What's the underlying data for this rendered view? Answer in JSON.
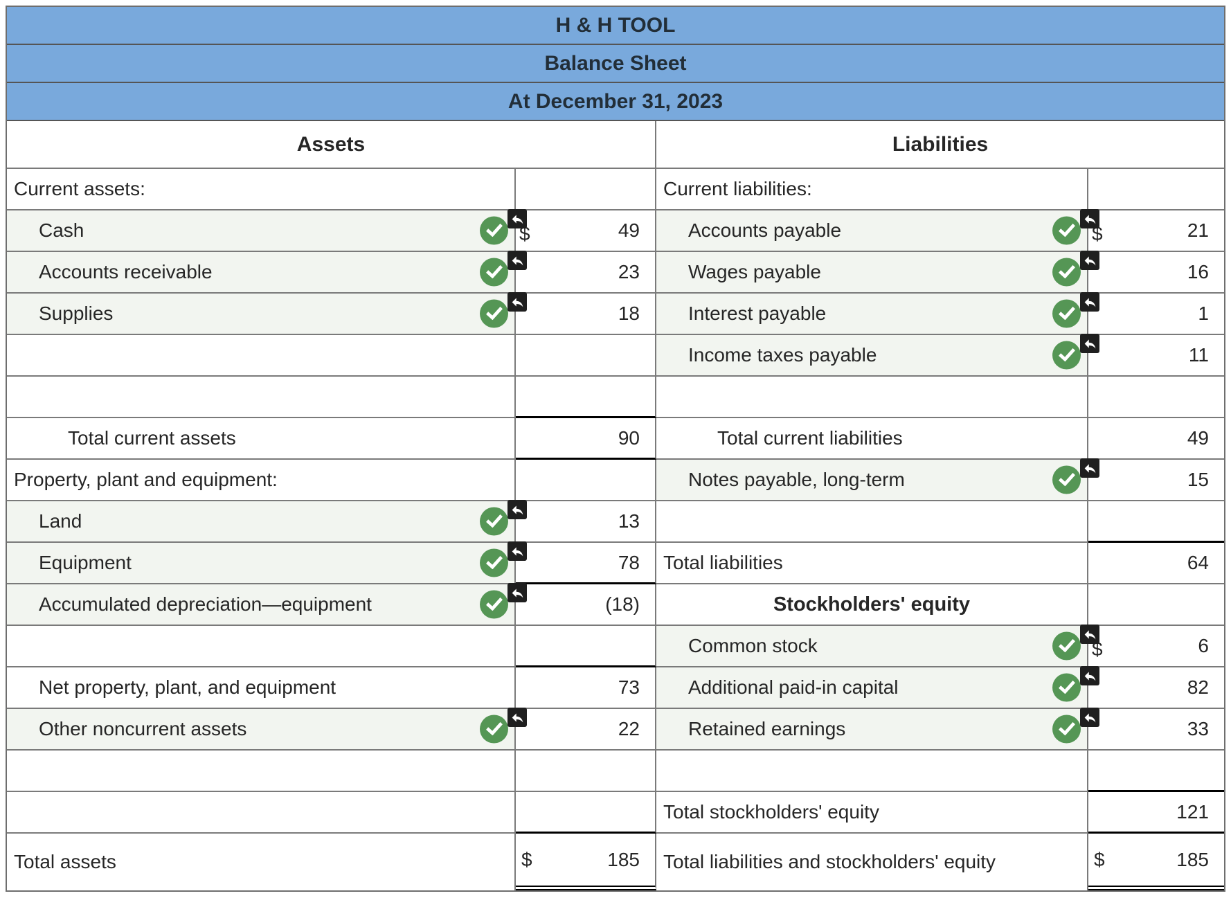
{
  "title": {
    "company": "H & H TOOL",
    "statement": "Balance Sheet",
    "date": "At December 31, 2023"
  },
  "column_headers": {
    "left": "Assets",
    "right": "Liabilities"
  },
  "colors": {
    "header_blue": "#79a9dc",
    "check_green": "#559655",
    "entry_row_bg": "#f2f5f0",
    "grid_border": "#7a7a7a",
    "thick_rule": "#000000",
    "undo_icon_bg": "#1f1f1f"
  },
  "icons": {
    "check": "check-circle-icon",
    "undo": "undo-arrow-icon"
  },
  "rows": [
    {
      "left": {
        "label": "Current assets:"
      },
      "right": {
        "label": "Current liabilities:"
      }
    },
    {
      "left": {
        "label": "Cash",
        "dollar": "$",
        "value": "49"
      },
      "right": {
        "label": "Accounts payable",
        "dollar": "$",
        "value": "21"
      }
    },
    {
      "left": {
        "label": "Accounts receivable",
        "value": "23"
      },
      "right": {
        "label": "Wages payable",
        "value": "16"
      }
    },
    {
      "left": {
        "label": "Supplies",
        "value": "18"
      },
      "right": {
        "label": "Interest payable",
        "value": "1"
      }
    },
    {
      "left": {},
      "right": {
        "label": "Income taxes payable",
        "value": "11"
      }
    },
    {
      "left": {},
      "right": {}
    },
    {
      "left": {
        "label": "Total current assets",
        "value": "90"
      },
      "right": {
        "label": "Total current liabilities",
        "value": "49"
      }
    },
    {
      "left": {
        "label": "Property, plant and equipment:"
      },
      "right": {
        "label": "Notes payable, long-term",
        "value": "15"
      }
    },
    {
      "left": {
        "label": "Land",
        "value": "13"
      },
      "right": {}
    },
    {
      "left": {
        "label": "Equipment",
        "value": "78"
      },
      "right": {
        "label": "Total liabilities",
        "value": "64"
      }
    },
    {
      "left": {
        "label": "Accumulated depreciation—equipment",
        "value": "(18)"
      },
      "right": {
        "label": "Stockholders' equity"
      }
    },
    {
      "left": {},
      "right": {
        "label": "Common stock",
        "dollar": "$",
        "value": "6"
      }
    },
    {
      "left": {
        "label": "Net property, plant, and equipment",
        "value": "73"
      },
      "right": {
        "label": "Additional paid-in capital",
        "value": "82"
      }
    },
    {
      "left": {
        "label": "Other noncurrent assets",
        "value": "22"
      },
      "right": {
        "label": "Retained earnings",
        "value": "33"
      }
    },
    {
      "left": {},
      "right": {}
    },
    {
      "left": {},
      "right": {
        "label": "Total stockholders' equity",
        "value": "121"
      }
    },
    {
      "left": {
        "label": "Total assets",
        "dollar": "$",
        "value": "185"
      },
      "right": {
        "label": "Total liabilities and stockholders' equity",
        "dollar": "$",
        "value": "185"
      }
    }
  ]
}
